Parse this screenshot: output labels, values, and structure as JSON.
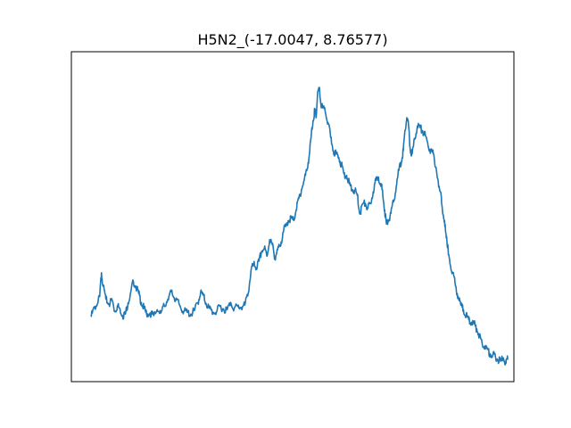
{
  "chart_data": {
    "type": "line",
    "title": "H5N2_(-17.0047, 8.76577)",
    "xlabel": "",
    "ylabel": "",
    "xlim": [
      0,
      1
    ],
    "ylim": [
      0,
      1
    ],
    "grid": false,
    "ticks_visible": false,
    "series": [
      {
        "color": "#1f77b4",
        "points": [
          [
            0.045,
            0.198
          ],
          [
            0.052,
            0.225
          ],
          [
            0.058,
            0.232
          ],
          [
            0.064,
            0.258
          ],
          [
            0.068,
            0.33
          ],
          [
            0.072,
            0.29
          ],
          [
            0.078,
            0.25
          ],
          [
            0.085,
            0.235
          ],
          [
            0.092,
            0.248
          ],
          [
            0.098,
            0.212
          ],
          [
            0.104,
            0.23
          ],
          [
            0.11,
            0.22
          ],
          [
            0.116,
            0.2
          ],
          [
            0.122,
            0.205
          ],
          [
            0.128,
            0.238
          ],
          [
            0.134,
            0.27
          ],
          [
            0.14,
            0.305
          ],
          [
            0.146,
            0.288
          ],
          [
            0.152,
            0.268
          ],
          [
            0.158,
            0.24
          ],
          [
            0.164,
            0.222
          ],
          [
            0.17,
            0.205
          ],
          [
            0.178,
            0.208
          ],
          [
            0.186,
            0.2
          ],
          [
            0.194,
            0.218
          ],
          [
            0.202,
            0.208
          ],
          [
            0.21,
            0.23
          ],
          [
            0.218,
            0.25
          ],
          [
            0.226,
            0.272
          ],
          [
            0.232,
            0.255
          ],
          [
            0.238,
            0.248
          ],
          [
            0.246,
            0.228
          ],
          [
            0.254,
            0.213
          ],
          [
            0.262,
            0.21
          ],
          [
            0.27,
            0.205
          ],
          [
            0.278,
            0.215
          ],
          [
            0.286,
            0.24
          ],
          [
            0.292,
            0.27
          ],
          [
            0.298,
            0.262
          ],
          [
            0.304,
            0.238
          ],
          [
            0.312,
            0.222
          ],
          [
            0.32,
            0.21
          ],
          [
            0.328,
            0.212
          ],
          [
            0.336,
            0.228
          ],
          [
            0.344,
            0.22
          ],
          [
            0.352,
            0.218
          ],
          [
            0.36,
            0.24
          ],
          [
            0.368,
            0.222
          ],
          [
            0.376,
            0.228
          ],
          [
            0.384,
            0.225
          ],
          [
            0.392,
            0.232
          ],
          [
            0.4,
            0.27
          ],
          [
            0.406,
            0.338
          ],
          [
            0.412,
            0.355
          ],
          [
            0.418,
            0.345
          ],
          [
            0.424,
            0.365
          ],
          [
            0.43,
            0.395
          ],
          [
            0.436,
            0.405
          ],
          [
            0.442,
            0.38
          ],
          [
            0.448,
            0.43
          ],
          [
            0.454,
            0.415
          ],
          [
            0.46,
            0.375
          ],
          [
            0.466,
            0.4
          ],
          [
            0.472,
            0.41
          ],
          [
            0.478,
            0.452
          ],
          [
            0.484,
            0.47
          ],
          [
            0.49,
            0.488
          ],
          [
            0.496,
            0.495
          ],
          [
            0.502,
            0.49
          ],
          [
            0.508,
            0.52
          ],
          [
            0.514,
            0.555
          ],
          [
            0.52,
            0.582
          ],
          [
            0.526,
            0.61
          ],
          [
            0.532,
            0.64
          ],
          [
            0.538,
            0.69
          ],
          [
            0.542,
            0.745
          ],
          [
            0.546,
            0.79
          ],
          [
            0.55,
            0.822
          ],
          [
            0.553,
            0.8
          ],
          [
            0.556,
            0.865
          ],
          [
            0.56,
            0.89
          ],
          [
            0.564,
            0.84
          ],
          [
            0.568,
            0.83
          ],
          [
            0.574,
            0.815
          ],
          [
            0.58,
            0.785
          ],
          [
            0.586,
            0.74
          ],
          [
            0.592,
            0.7
          ],
          [
            0.598,
            0.69
          ],
          [
            0.604,
            0.68
          ],
          [
            0.61,
            0.658
          ],
          [
            0.616,
            0.63
          ],
          [
            0.622,
            0.625
          ],
          [
            0.628,
            0.6
          ],
          [
            0.634,
            0.582
          ],
          [
            0.64,
            0.58
          ],
          [
            0.646,
            0.565
          ],
          [
            0.652,
            0.508
          ],
          [
            0.658,
            0.538
          ],
          [
            0.664,
            0.54
          ],
          [
            0.67,
            0.525
          ],
          [
            0.676,
            0.54
          ],
          [
            0.682,
            0.575
          ],
          [
            0.688,
            0.61
          ],
          [
            0.694,
            0.62
          ],
          [
            0.7,
            0.6
          ],
          [
            0.704,
            0.56
          ],
          [
            0.708,
            0.52
          ],
          [
            0.712,
            0.478
          ],
          [
            0.716,
            0.488
          ],
          [
            0.722,
            0.51
          ],
          [
            0.728,
            0.545
          ],
          [
            0.734,
            0.59
          ],
          [
            0.74,
            0.64
          ],
          [
            0.746,
            0.668
          ],
          [
            0.75,
            0.7
          ],
          [
            0.754,
            0.762
          ],
          [
            0.758,
            0.8
          ],
          [
            0.762,
            0.775
          ],
          [
            0.766,
            0.7
          ],
          [
            0.77,
            0.69
          ],
          [
            0.776,
            0.735
          ],
          [
            0.782,
            0.775
          ],
          [
            0.788,
            0.77
          ],
          [
            0.794,
            0.76
          ],
          [
            0.8,
            0.745
          ],
          [
            0.806,
            0.715
          ],
          [
            0.812,
            0.7
          ],
          [
            0.818,
            0.69
          ],
          [
            0.824,
            0.65
          ],
          [
            0.83,
            0.59
          ],
          [
            0.836,
            0.56
          ],
          [
            0.84,
            0.505
          ],
          [
            0.844,
            0.47
          ],
          [
            0.848,
            0.44
          ],
          [
            0.852,
            0.385
          ],
          [
            0.856,
            0.355
          ],
          [
            0.862,
            0.33
          ],
          [
            0.868,
            0.29
          ],
          [
            0.874,
            0.258
          ],
          [
            0.88,
            0.232
          ],
          [
            0.886,
            0.218
          ],
          [
            0.892,
            0.2
          ],
          [
            0.898,
            0.188
          ],
          [
            0.904,
            0.18
          ],
          [
            0.91,
            0.175
          ],
          [
            0.916,
            0.16
          ],
          [
            0.922,
            0.14
          ],
          [
            0.928,
            0.118
          ],
          [
            0.934,
            0.108
          ],
          [
            0.94,
            0.098
          ],
          [
            0.946,
            0.085
          ],
          [
            0.952,
            0.08
          ],
          [
            0.958,
            0.078
          ],
          [
            0.964,
            0.065
          ],
          [
            0.97,
            0.062
          ],
          [
            0.976,
            0.072
          ],
          [
            0.982,
            0.055
          ],
          [
            0.986,
            0.068
          ]
        ]
      }
    ]
  }
}
